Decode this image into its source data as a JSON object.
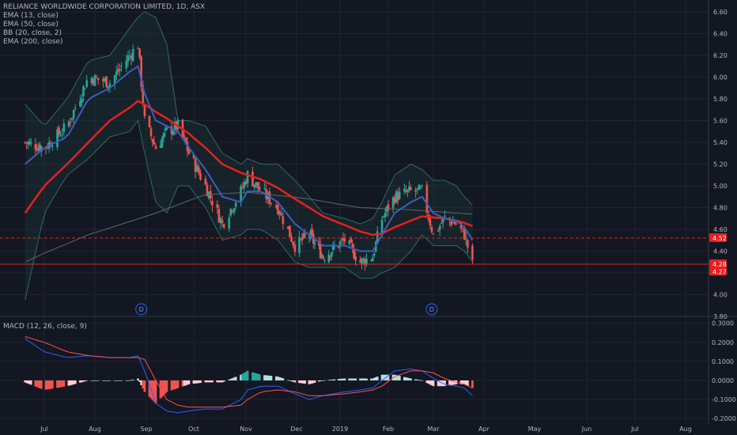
{
  "chart_title": "RELIANCE WORLDWIDE CORPORATION LIMITED, 1D, ASX",
  "indicators": [
    "EMA (13, close)",
    "EMA (50, close)",
    "BB (20, close, 2)",
    "EMA (200, close)"
  ],
  "macd_title": "MACD (12, 26, close, 9)",
  "colors": {
    "background": "#131722",
    "grid": "#1f2430",
    "axis_text": "#b2b5be",
    "up": "#26a69a",
    "down": "#ef5350",
    "ema13": "#3d5dbf",
    "ema50": "#e81f1f",
    "ema200": "#5b6b6a",
    "bb": "#2e6b66",
    "macd_line": "#2962ff",
    "signal_line": "#ff5252",
    "hline": "#e81f1f",
    "badge": "#e81f1f"
  },
  "chart_data": [
    {
      "type": "candlestick",
      "title": "RELIANCE WORLDWIDE CORPORATION LIMITED, 1D, ASX",
      "x_ticks": [
        "Jul",
        "Aug",
        "Sep",
        "Oct",
        "Nov",
        "Dec",
        "2019",
        "Feb",
        "Mar",
        "Apr",
        "May",
        "Jun",
        "Jul",
        "Aug"
      ],
      "y_ticks": [
        "6.60",
        "6.40",
        "6.20",
        "6.00",
        "5.80",
        "5.60",
        "5.40",
        "5.20",
        "5.00",
        "4.80",
        "4.60",
        "4.40",
        "4.20",
        "4.00",
        "3.80"
      ],
      "ylim": [
        3.8,
        6.65
      ],
      "horizontal_lines": [
        4.52,
        4.28
      ],
      "price_labels": [
        "4.52",
        "4.28",
        "4.27"
      ],
      "dividend_marker": "D",
      "dividend_dates": [
        "2018-08-29",
        "2019-02-28"
      ],
      "close_anchors": [
        [
          "2018-06-18",
          5.4
        ],
        [
          "2018-07-01",
          5.35
        ],
        [
          "2018-07-15",
          5.55
        ],
        [
          "2018-07-28",
          6.0
        ],
        [
          "2018-08-10",
          5.95
        ],
        [
          "2018-08-22",
          6.2
        ],
        [
          "2018-08-27",
          6.3
        ],
        [
          "2018-08-31",
          5.6
        ],
        [
          "2018-09-07",
          5.35
        ],
        [
          "2018-09-14",
          5.5
        ],
        [
          "2018-09-21",
          5.55
        ],
        [
          "2018-09-28",
          5.3
        ],
        [
          "2018-10-08",
          5.0
        ],
        [
          "2018-10-18",
          4.65
        ],
        [
          "2018-10-29",
          4.95
        ],
        [
          "2018-11-02",
          5.1
        ],
        [
          "2018-11-10",
          4.95
        ],
        [
          "2018-11-20",
          4.8
        ],
        [
          "2018-11-30",
          4.45
        ],
        [
          "2018-12-10",
          4.55
        ],
        [
          "2018-12-20",
          4.35
        ],
        [
          "2019-01-04",
          4.5
        ],
        [
          "2019-01-14",
          4.3
        ],
        [
          "2019-01-22",
          4.35
        ],
        [
          "2019-01-28",
          4.7
        ],
        [
          "2019-02-05",
          4.9
        ],
        [
          "2019-02-15",
          4.95
        ],
        [
          "2019-02-22",
          4.95
        ],
        [
          "2019-03-01",
          4.55
        ],
        [
          "2019-03-08",
          4.7
        ],
        [
          "2019-03-15",
          4.65
        ],
        [
          "2019-03-20",
          4.55
        ],
        [
          "2019-03-25",
          4.28
        ]
      ],
      "ema13_anchors": [
        [
          "2018-06-18",
          5.2
        ],
        [
          "2018-07-01",
          5.35
        ],
        [
          "2018-07-15",
          5.45
        ],
        [
          "2018-07-28",
          5.8
        ],
        [
          "2018-08-10",
          5.9
        ],
        [
          "2018-08-22",
          6.05
        ],
        [
          "2018-08-27",
          6.1
        ],
        [
          "2018-08-31",
          5.85
        ],
        [
          "2018-09-07",
          5.6
        ],
        [
          "2018-09-14",
          5.55
        ],
        [
          "2018-09-21",
          5.5
        ],
        [
          "2018-09-28",
          5.35
        ],
        [
          "2018-10-08",
          5.15
        ],
        [
          "2018-10-18",
          4.9
        ],
        [
          "2018-10-29",
          4.85
        ],
        [
          "2018-11-02",
          4.95
        ],
        [
          "2018-11-10",
          4.95
        ],
        [
          "2018-11-20",
          4.85
        ],
        [
          "2018-11-30",
          4.65
        ],
        [
          "2018-12-10",
          4.55
        ],
        [
          "2018-12-20",
          4.45
        ],
        [
          "2019-01-04",
          4.45
        ],
        [
          "2019-01-14",
          4.4
        ],
        [
          "2019-01-22",
          4.4
        ],
        [
          "2019-01-28",
          4.55
        ],
        [
          "2019-02-05",
          4.75
        ],
        [
          "2019-02-15",
          4.85
        ],
        [
          "2019-02-22",
          4.9
        ],
        [
          "2019-03-01",
          4.75
        ],
        [
          "2019-03-08",
          4.7
        ],
        [
          "2019-03-15",
          4.68
        ],
        [
          "2019-03-20",
          4.62
        ],
        [
          "2019-03-25",
          4.5
        ]
      ],
      "ema50_anchors": [
        [
          "2018-06-18",
          4.75
        ],
        [
          "2018-07-01",
          5.0
        ],
        [
          "2018-07-15",
          5.2
        ],
        [
          "2018-07-28",
          5.4
        ],
        [
          "2018-08-10",
          5.6
        ],
        [
          "2018-08-22",
          5.72
        ],
        [
          "2018-08-27",
          5.78
        ],
        [
          "2018-08-31",
          5.75
        ],
        [
          "2018-09-07",
          5.68
        ],
        [
          "2018-09-14",
          5.62
        ],
        [
          "2018-09-21",
          5.55
        ],
        [
          "2018-09-28",
          5.48
        ],
        [
          "2018-10-08",
          5.35
        ],
        [
          "2018-10-18",
          5.2
        ],
        [
          "2018-10-29",
          5.12
        ],
        [
          "2018-11-02",
          5.1
        ],
        [
          "2018-11-10",
          5.06
        ],
        [
          "2018-11-20",
          4.98
        ],
        [
          "2018-11-30",
          4.88
        ],
        [
          "2018-12-10",
          4.8
        ],
        [
          "2018-12-20",
          4.72
        ],
        [
          "2019-01-04",
          4.64
        ],
        [
          "2019-01-14",
          4.58
        ],
        [
          "2019-01-22",
          4.55
        ],
        [
          "2019-01-28",
          4.56
        ],
        [
          "2019-02-05",
          4.62
        ],
        [
          "2019-02-15",
          4.68
        ],
        [
          "2019-02-22",
          4.72
        ],
        [
          "2019-03-01",
          4.71
        ],
        [
          "2019-03-08",
          4.7
        ],
        [
          "2019-03-15",
          4.68
        ],
        [
          "2019-03-20",
          4.66
        ],
        [
          "2019-03-25",
          4.63
        ]
      ],
      "ema200_anchors": [
        [
          "2018-06-18",
          4.3
        ],
        [
          "2018-07-28",
          4.55
        ],
        [
          "2018-09-07",
          4.75
        ],
        [
          "2018-10-08",
          4.92
        ],
        [
          "2018-11-02",
          4.94
        ],
        [
          "2018-12-10",
          4.88
        ],
        [
          "2019-01-14",
          4.8
        ],
        [
          "2019-02-15",
          4.78
        ],
        [
          "2019-03-25",
          4.74
        ]
      ],
      "bb_upper_anchors": [
        [
          "2018-06-18",
          5.75
        ],
        [
          "2018-07-01",
          5.55
        ],
        [
          "2018-07-15",
          5.8
        ],
        [
          "2018-07-28",
          6.15
        ],
        [
          "2018-08-10",
          6.2
        ],
        [
          "2018-08-22",
          6.45
        ],
        [
          "2018-08-27",
          6.55
        ],
        [
          "2018-08-31",
          6.6
        ],
        [
          "2018-09-07",
          6.55
        ],
        [
          "2018-09-14",
          6.3
        ],
        [
          "2018-09-21",
          5.6
        ],
        [
          "2018-09-28",
          5.6
        ],
        [
          "2018-10-08",
          5.55
        ],
        [
          "2018-10-18",
          5.3
        ],
        [
          "2018-10-29",
          5.2
        ],
        [
          "2018-11-02",
          5.25
        ],
        [
          "2018-11-10",
          5.2
        ],
        [
          "2018-11-20",
          5.2
        ],
        [
          "2018-11-30",
          5.05
        ],
        [
          "2018-12-10",
          4.9
        ],
        [
          "2018-12-20",
          4.75
        ],
        [
          "2019-01-04",
          4.7
        ],
        [
          "2019-01-14",
          4.65
        ],
        [
          "2019-01-22",
          4.7
        ],
        [
          "2019-01-28",
          4.85
        ],
        [
          "2019-02-05",
          5.1
        ],
        [
          "2019-02-15",
          5.2
        ],
        [
          "2019-02-22",
          5.15
        ],
        [
          "2019-03-01",
          5.05
        ],
        [
          "2019-03-08",
          5.05
        ],
        [
          "2019-03-15",
          5.0
        ],
        [
          "2019-03-20",
          4.9
        ],
        [
          "2019-03-25",
          4.82
        ]
      ],
      "bb_lower_anchors": [
        [
          "2018-06-18",
          3.95
        ],
        [
          "2018-07-01",
          4.75
        ],
        [
          "2018-07-15",
          5.1
        ],
        [
          "2018-07-28",
          5.25
        ],
        [
          "2018-08-10",
          5.45
        ],
        [
          "2018-08-22",
          5.5
        ],
        [
          "2018-08-27",
          5.6
        ],
        [
          "2018-08-31",
          5.3
        ],
        [
          "2018-09-07",
          4.85
        ],
        [
          "2018-09-14",
          4.75
        ],
        [
          "2018-09-21",
          5.0
        ],
        [
          "2018-09-28",
          5.0
        ],
        [
          "2018-10-08",
          4.8
        ],
        [
          "2018-10-18",
          4.5
        ],
        [
          "2018-10-29",
          4.55
        ],
        [
          "2018-11-02",
          4.6
        ],
        [
          "2018-11-10",
          4.6
        ],
        [
          "2018-11-20",
          4.5
        ],
        [
          "2018-11-30",
          4.3
        ],
        [
          "2018-12-10",
          4.25
        ],
        [
          "2018-12-20",
          4.25
        ],
        [
          "2019-01-04",
          4.25
        ],
        [
          "2019-01-14",
          4.15
        ],
        [
          "2019-01-22",
          4.15
        ],
        [
          "2019-01-28",
          4.2
        ],
        [
          "2019-02-05",
          4.25
        ],
        [
          "2019-02-15",
          4.4
        ],
        [
          "2019-02-22",
          4.55
        ],
        [
          "2019-03-01",
          4.45
        ],
        [
          "2019-03-08",
          4.45
        ],
        [
          "2019-03-15",
          4.45
        ],
        [
          "2019-03-20",
          4.4
        ],
        [
          "2019-03-25",
          4.3
        ]
      ]
    },
    {
      "type": "macd",
      "title": "MACD (12, 26, close, 9)",
      "y_ticks": [
        "0.3000",
        "0.2000",
        "0.1000",
        "0.0000",
        "-0.1000",
        "-0.2000"
      ],
      "ylim": [
        -0.2,
        0.3
      ],
      "macd_anchors": [
        [
          "2018-06-18",
          0.22
        ],
        [
          "2018-07-01",
          0.15
        ],
        [
          "2018-07-15",
          0.12
        ],
        [
          "2018-07-28",
          0.13
        ],
        [
          "2018-08-10",
          0.12
        ],
        [
          "2018-08-22",
          0.12
        ],
        [
          "2018-08-27",
          0.13
        ],
        [
          "2018-08-31",
          0.05
        ],
        [
          "2018-09-07",
          -0.12
        ],
        [
          "2018-09-14",
          -0.16
        ],
        [
          "2018-09-21",
          -0.17
        ],
        [
          "2018-09-28",
          -0.16
        ],
        [
          "2018-10-08",
          -0.15
        ],
        [
          "2018-10-18",
          -0.15
        ],
        [
          "2018-10-29",
          -0.1
        ],
        [
          "2018-11-02",
          -0.05
        ],
        [
          "2018-11-10",
          -0.03
        ],
        [
          "2018-11-20",
          -0.03
        ],
        [
          "2018-11-30",
          -0.07
        ],
        [
          "2018-12-10",
          -0.1
        ],
        [
          "2018-12-20",
          -0.08
        ],
        [
          "2019-01-04",
          -0.06
        ],
        [
          "2019-01-14",
          -0.05
        ],
        [
          "2019-01-22",
          -0.04
        ],
        [
          "2019-01-28",
          0.0
        ],
        [
          "2019-02-05",
          0.05
        ],
        [
          "2019-02-15",
          0.06
        ],
        [
          "2019-02-22",
          0.05
        ],
        [
          "2019-03-01",
          0.01
        ],
        [
          "2019-03-08",
          -0.02
        ],
        [
          "2019-03-15",
          -0.03
        ],
        [
          "2019-03-20",
          -0.04
        ],
        [
          "2019-03-25",
          -0.08
        ]
      ],
      "signal_anchors": [
        [
          "2018-06-18",
          0.23
        ],
        [
          "2018-07-01",
          0.2
        ],
        [
          "2018-07-15",
          0.15
        ],
        [
          "2018-07-28",
          0.13
        ],
        [
          "2018-08-10",
          0.12
        ],
        [
          "2018-08-22",
          0.12
        ],
        [
          "2018-08-27",
          0.12
        ],
        [
          "2018-08-31",
          0.11
        ],
        [
          "2018-09-07",
          0.0
        ],
        [
          "2018-09-14",
          -0.1
        ],
        [
          "2018-09-21",
          -0.13
        ],
        [
          "2018-09-28",
          -0.14
        ],
        [
          "2018-10-08",
          -0.14
        ],
        [
          "2018-10-18",
          -0.14
        ],
        [
          "2018-10-29",
          -0.13
        ],
        [
          "2018-11-02",
          -0.1
        ],
        [
          "2018-11-10",
          -0.06
        ],
        [
          "2018-11-20",
          -0.05
        ],
        [
          "2018-11-30",
          -0.06
        ],
        [
          "2018-12-10",
          -0.08
        ],
        [
          "2018-12-20",
          -0.08
        ],
        [
          "2019-01-04",
          -0.07
        ],
        [
          "2019-01-14",
          -0.06
        ],
        [
          "2019-01-22",
          -0.05
        ],
        [
          "2019-01-28",
          -0.03
        ],
        [
          "2019-02-05",
          0.02
        ],
        [
          "2019-02-15",
          0.05
        ],
        [
          "2019-02-22",
          0.05
        ],
        [
          "2019-03-01",
          0.04
        ],
        [
          "2019-03-08",
          0.01
        ],
        [
          "2019-03-15",
          -0.01
        ],
        [
          "2019-03-20",
          -0.02
        ],
        [
          "2019-03-25",
          -0.04
        ]
      ]
    }
  ]
}
